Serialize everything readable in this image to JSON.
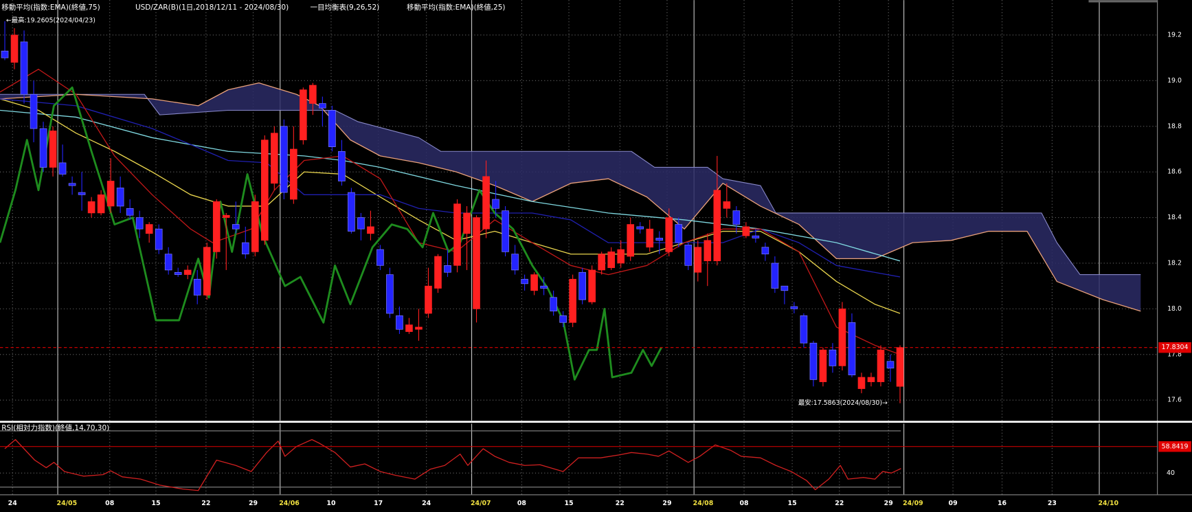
{
  "chart_data": [
    {
      "type": "candlestick",
      "name": "USD/ZAR(B)(1日,2018/12/11 - 2024/08/30)",
      "up_color": "#ff2020",
      "down_color": "#2424ff",
      "open": [
        19.13,
        19.08,
        19.17,
        18.94,
        18.79,
        18.62,
        18.64,
        18.55,
        18.51,
        18.42,
        18.42,
        18.45,
        18.53,
        18.44,
        18.4,
        18.33,
        18.35,
        18.24,
        18.16,
        18.15,
        18.13,
        18.06,
        18.25,
        18.4,
        18.37,
        18.29,
        18.25,
        18.3,
        18.55,
        18.8,
        18.48,
        18.74,
        18.9,
        18.9,
        18.87,
        18.69,
        18.51,
        18.4,
        18.33,
        18.26,
        18.15,
        17.97,
        17.9,
        17.91,
        17.98,
        18.09,
        18.19,
        18.19,
        18.33,
        18.0,
        18.35,
        18.48,
        18.43,
        18.24,
        18.13,
        18.08,
        18.1,
        18.05,
        17.97,
        17.94,
        18.16,
        18.03,
        18.17,
        18.18,
        18.2,
        18.23,
        18.36,
        18.27,
        18.31,
        18.25,
        18.37,
        18.28,
        18.16,
        18.21,
        18.21,
        18.44,
        18.43,
        18.32,
        18.32,
        18.27,
        18.2,
        18.1,
        18.01,
        17.97,
        17.85,
        17.68,
        17.82,
        17.75,
        17.94,
        17.65,
        17.68,
        17.68,
        17.77,
        17.66
      ],
      "high": [
        19.2605,
        19.23,
        19.22,
        19.0,
        18.82,
        18.8,
        18.72,
        18.58,
        18.6,
        18.49,
        18.52,
        18.66,
        18.58,
        18.48,
        18.43,
        18.38,
        18.37,
        18.27,
        18.18,
        18.19,
        18.17,
        18.29,
        18.48,
        18.42,
        18.47,
        18.36,
        18.5,
        18.76,
        18.8,
        18.83,
        18.8,
        18.97,
        18.99,
        18.93,
        18.89,
        18.74,
        18.53,
        18.42,
        18.43,
        18.28,
        18.18,
        18.01,
        17.96,
        18.0,
        18.18,
        18.24,
        18.26,
        18.48,
        18.45,
        18.41,
        18.65,
        18.56,
        18.45,
        18.28,
        18.15,
        18.16,
        18.14,
        18.08,
        17.99,
        18.15,
        18.18,
        18.19,
        18.25,
        18.27,
        18.3,
        18.4,
        18.38,
        18.39,
        18.34,
        18.44,
        18.4,
        18.29,
        18.3,
        18.33,
        18.67,
        18.55,
        18.45,
        18.38,
        18.35,
        18.29,
        18.23,
        18.1,
        18.03,
        17.98,
        17.86,
        17.83,
        17.85,
        18.03,
        17.98,
        17.72,
        17.72,
        17.84,
        17.8,
        17.84
      ],
      "low": [
        19.09,
        19.05,
        18.9,
        18.73,
        18.6,
        18.58,
        18.58,
        18.5,
        18.43,
        18.4,
        18.41,
        18.42,
        18.42,
        18.39,
        18.31,
        18.29,
        18.24,
        18.15,
        18.14,
        18.13,
        18.02,
        18.04,
        18.22,
        18.17,
        18.33,
        18.22,
        18.23,
        18.28,
        18.52,
        18.48,
        18.46,
        18.72,
        18.85,
        18.8,
        18.69,
        18.54,
        18.33,
        18.3,
        18.3,
        18.17,
        17.96,
        17.89,
        17.89,
        17.86,
        17.96,
        18.07,
        18.14,
        18.16,
        18.17,
        17.94,
        18.31,
        18.4,
        18.23,
        18.15,
        18.08,
        18.06,
        18.06,
        17.97,
        17.92,
        17.92,
        18.02,
        18.02,
        18.15,
        18.17,
        18.18,
        18.21,
        18.33,
        18.25,
        18.24,
        18.23,
        18.27,
        18.17,
        18.12,
        18.1,
        18.19,
        18.4,
        18.33,
        18.31,
        18.29,
        18.21,
        18.07,
        18.02,
        17.98,
        17.83,
        17.66,
        17.66,
        17.72,
        17.73,
        17.7,
        17.63,
        17.66,
        17.66,
        17.68,
        17.5863
      ],
      "close": [
        19.1,
        19.2,
        18.94,
        18.79,
        18.62,
        18.78,
        18.59,
        18.54,
        18.5,
        18.47,
        18.5,
        18.56,
        18.45,
        18.41,
        18.35,
        18.37,
        18.26,
        18.17,
        18.15,
        18.17,
        18.06,
        18.27,
        18.47,
        18.41,
        18.35,
        18.24,
        18.47,
        18.74,
        18.77,
        18.51,
        18.7,
        18.96,
        18.98,
        18.88,
        18.71,
        18.56,
        18.34,
        18.35,
        18.36,
        18.19,
        17.98,
        17.91,
        17.93,
        17.92,
        18.1,
        18.23,
        18.16,
        18.46,
        18.42,
        18.4,
        18.58,
        18.44,
        18.25,
        18.17,
        18.11,
        18.15,
        18.09,
        17.99,
        17.94,
        18.13,
        18.04,
        18.17,
        18.24,
        18.25,
        18.26,
        18.37,
        18.35,
        18.35,
        18.3,
        18.4,
        18.29,
        18.19,
        18.27,
        18.3,
        18.52,
        18.47,
        18.37,
        18.36,
        18.31,
        18.24,
        18.09,
        18.08,
        18.0,
        17.85,
        17.69,
        17.82,
        17.75,
        18.0,
        17.71,
        17.7,
        17.7,
        17.82,
        17.74,
        17.8304
      ],
      "overlays": [
        {
          "name": "移動平均(指数:EMA)(終値,75)",
          "color": "#7fd8e0",
          "x": [
            -0.5,
            7.4,
            15.3,
            23.2,
            31.1,
            35.1,
            39.0,
            46.9,
            54.8,
            62.7,
            70.6,
            78.5,
            86.4,
            93.0
          ],
          "values": [
            18.87,
            18.84,
            18.75,
            18.69,
            18.67,
            18.65,
            18.62,
            18.54,
            18.47,
            18.42,
            18.39,
            18.35,
            18.29,
            18.21
          ]
        },
        {
          "name": "移動平均(指数:EMA)(終値,25)",
          "color": "#e8d44d",
          "x": [
            -0.5,
            3.5,
            7.4,
            11.4,
            15.3,
            19.3,
            23.2,
            27.2,
            31.1,
            35.1,
            39.0,
            43.0,
            46.9,
            50.9,
            54.8,
            58.8,
            62.7,
            66.7,
            70.6,
            74.6,
            78.5,
            82.5,
            86.4,
            90.4,
            93.0
          ],
          "values": [
            18.92,
            18.87,
            18.77,
            18.69,
            18.6,
            18.5,
            18.45,
            18.45,
            18.6,
            18.59,
            18.49,
            18.39,
            18.3,
            18.34,
            18.29,
            18.24,
            18.24,
            18.24,
            18.29,
            18.34,
            18.34,
            18.25,
            18.12,
            18.02,
            17.98
          ]
        }
      ],
      "ichimoku": {
        "name": "一目均衡表(9,26,52)",
        "cloud_color": "#2c2c66",
        "tenkan": {
          "color": "#c01818",
          "x": [
            -0.5,
            3.5,
            7.4,
            11.4,
            15.3,
            19.3,
            21.6,
            25.6,
            28.0,
            31.1,
            35.1,
            39.0,
            43.0,
            46.9,
            50.9,
            54.8,
            58.8,
            62.7,
            66.7,
            70.6,
            74.6,
            78.5,
            82.5,
            86.4,
            90.4,
            93.0
          ],
          "values": [
            18.95,
            19.05,
            18.94,
            18.67,
            18.5,
            18.35,
            18.29,
            18.35,
            18.52,
            18.65,
            18.67,
            18.57,
            18.29,
            18.25,
            18.39,
            18.29,
            18.19,
            18.15,
            18.19,
            18.29,
            18.35,
            18.35,
            18.25,
            17.92,
            17.84,
            17.8
          ]
        },
        "kijun": {
          "color": "#2020b0",
          "x": [
            -0.5,
            7.4,
            15.3,
            19.3,
            23.2,
            27.2,
            31.1,
            35.1,
            39.0,
            43.0,
            46.9,
            54.8,
            58.8,
            62.7,
            70.6,
            74.6,
            78.5,
            82.5,
            86.4,
            93.0
          ],
          "values": [
            18.92,
            18.89,
            18.79,
            18.72,
            18.65,
            18.64,
            18.5,
            18.5,
            18.5,
            18.44,
            18.42,
            18.42,
            18.39,
            18.29,
            18.29,
            18.29,
            18.35,
            18.29,
            18.19,
            18.14
          ]
        },
        "span_a": {
          "color": "#e8a07a",
          "x": [
            -0.5,
            7.4,
            15.3,
            20.1,
            23.2,
            26.4,
            30.3,
            32.7,
            35.9,
            39.0,
            43.0,
            46.9,
            50.9,
            54.8,
            58.8,
            62.7,
            66.7,
            70.6,
            74.6,
            78.5,
            82.5,
            86.4,
            90.4,
            94.3,
            98.3,
            102.2,
            106.2,
            109.3,
            114.1,
            118.0
          ],
          "values": [
            18.92,
            18.94,
            18.92,
            18.89,
            18.96,
            18.99,
            18.94,
            18.89,
            18.74,
            18.67,
            18.64,
            18.6,
            18.54,
            18.47,
            18.55,
            18.57,
            18.49,
            18.35,
            18.55,
            18.45,
            18.37,
            18.22,
            18.22,
            18.29,
            18.3,
            18.34,
            18.34,
            18.12,
            18.04,
            17.99
          ]
        },
        "span_b": {
          "color": "#8888c8",
          "x": [
            -0.5,
            14.5,
            16.1,
            23.2,
            34.3,
            36.7,
            43.0,
            45.3,
            65.1,
            67.5,
            73.0,
            74.6,
            78.5,
            80.1,
            107.7,
            109.3,
            111.7,
            118.0
          ],
          "values": [
            18.94,
            18.94,
            18.85,
            18.87,
            18.87,
            18.82,
            18.75,
            18.69,
            18.69,
            18.62,
            18.62,
            18.57,
            18.54,
            18.42,
            18.42,
            18.29,
            18.15,
            18.15
          ]
        },
        "chikou": {
          "color": "#1e8c1e",
          "x": [
            -0.5,
            1.1,
            2.3,
            3.5,
            5.1,
            7.0,
            9.0,
            11.4,
            13.3,
            15.7,
            18.1,
            20.1,
            21.2,
            22.4,
            23.6,
            25.2,
            26.8,
            29.1,
            30.7,
            33.1,
            34.3,
            35.9,
            38.2,
            40.2,
            41.8,
            43.4,
            44.5,
            46.1,
            47.3,
            49.3,
            50.9,
            52.8,
            54.8,
            56.4,
            58.0,
            59.2,
            60.7,
            61.5,
            62.3,
            63.1,
            65.1,
            66.3,
            67.2,
            68.2
          ],
          "values": [
            18.29,
            18.52,
            18.74,
            18.52,
            18.89,
            18.97,
            18.69,
            18.37,
            18.4,
            17.95,
            17.95,
            18.22,
            18.05,
            18.47,
            18.25,
            18.59,
            18.32,
            18.1,
            18.14,
            17.94,
            18.19,
            18.02,
            18.27,
            18.37,
            18.35,
            18.27,
            18.42,
            18.25,
            18.29,
            18.52,
            18.42,
            18.35,
            18.19,
            18.09,
            17.95,
            17.69,
            17.82,
            17.82,
            18.0,
            17.7,
            17.72,
            17.82,
            17.75,
            17.83
          ]
        }
      },
      "current": 17.8304,
      "current_color": "#e00000",
      "annotations": [
        "←最高:19.2605(2024/04/23)",
        "最安:17.5863(2024/08/30)→"
      ],
      "xlim": [
        -0.5,
        119.7
      ],
      "ylim": [
        17.51,
        19.343
      ],
      "xticks": [
        {
          "value": 0.8,
          "label": "24"
        },
        {
          "value": 5.5,
          "label": "24/05"
        },
        {
          "value": 10.9,
          "label": "08"
        },
        {
          "value": 15.7,
          "label": "15"
        },
        {
          "value": 20.9,
          "label": "22"
        },
        {
          "value": 25.8,
          "label": "29"
        },
        {
          "value": 28.6,
          "label": "24/06"
        },
        {
          "value": 33.9,
          "label": "10"
        },
        {
          "value": 38.8,
          "label": "17"
        },
        {
          "value": 43.8,
          "label": "24"
        },
        {
          "value": 48.5,
          "label": "24/07"
        },
        {
          "value": 53.7,
          "label": "08"
        },
        {
          "value": 58.6,
          "label": "15"
        },
        {
          "value": 63.9,
          "label": "22"
        },
        {
          "value": 68.8,
          "label": "29"
        },
        {
          "value": 71.6,
          "label": "24/08"
        },
        {
          "value": 76.8,
          "label": "08"
        },
        {
          "value": 81.8,
          "label": "15"
        },
        {
          "value": 86.7,
          "label": "22"
        },
        {
          "value": 91.8,
          "label": "29"
        },
        {
          "value": 93.4,
          "label": "24/09"
        },
        {
          "value": 98.5,
          "label": "09"
        },
        {
          "value": 103.6,
          "label": "16"
        },
        {
          "value": 108.8,
          "label": "23"
        },
        {
          "value": 113.7,
          "label": "24/10"
        }
      ],
      "yticks": [
        19.2,
        {
          "value": 19,
          "label": "19.0"
        },
        18.8,
        18.6,
        18.4,
        18.2,
        {
          "value": 18,
          "label": "18.0"
        },
        17.8,
        17.6
      ],
      "grid": true
    },
    {
      "type": "line",
      "title": "RSI(相対力指数)(終値,14,70,30)",
      "series": [
        {
          "color": "#d02020",
          "x": [
            0,
            1.1,
            3.1,
            4.3,
            5.1,
            6.2,
            8.2,
            10.2,
            11.0,
            12.2,
            14.1,
            16.1,
            18.5,
            20.1,
            22.0,
            24.0,
            25.6,
            27.2,
            28.4,
            29.1,
            30.3,
            31.9,
            32.7,
            34.3,
            35.9,
            37.4,
            39.0,
            40.6,
            42.6,
            44.2,
            45.7,
            47.3,
            48.1,
            49.7,
            50.9,
            52.4,
            54.0,
            55.6,
            58.0,
            59.6,
            61.9,
            63.9,
            65.1,
            66.7,
            67.9,
            69.0,
            71.0,
            72.2,
            73.8,
            75.4,
            76.5,
            78.5,
            80.1,
            81.7,
            83.3,
            84.2,
            85.6,
            86.8,
            87.6,
            89.2,
            90.4,
            91.2,
            92.1,
            93.1
          ],
          "values": [
            57.3,
            63.8,
            49.2,
            43.8,
            47.6,
            41.1,
            37.8,
            38.9,
            41.6,
            37.3,
            35.7,
            31.4,
            28.6,
            27.6,
            49.2,
            45.4,
            41.1,
            54.6,
            62.7,
            51.9,
            58.9,
            63.8,
            61.1,
            54.6,
            44.3,
            46.5,
            41.1,
            38.4,
            35.7,
            42.7,
            45.4,
            53.5,
            45.4,
            57.3,
            51.9,
            47.6,
            45.4,
            45.9,
            41.1,
            50.8,
            50.8,
            53.0,
            54.6,
            53.5,
            51.9,
            55.7,
            47.6,
            51.9,
            60.0,
            56.2,
            51.9,
            50.8,
            45.4,
            41.1,
            34.6,
            28.1,
            35.7,
            45.4,
            35.7,
            36.8,
            35.7,
            41.1,
            40.0,
            43.2
          ]
        }
      ],
      "levels": [
        70,
        30
      ],
      "current": 58.8419,
      "current_color": "#e00000",
      "ylim": [
        25.9,
        75.1
      ],
      "yticks": [
        40
      ]
    }
  ]
}
